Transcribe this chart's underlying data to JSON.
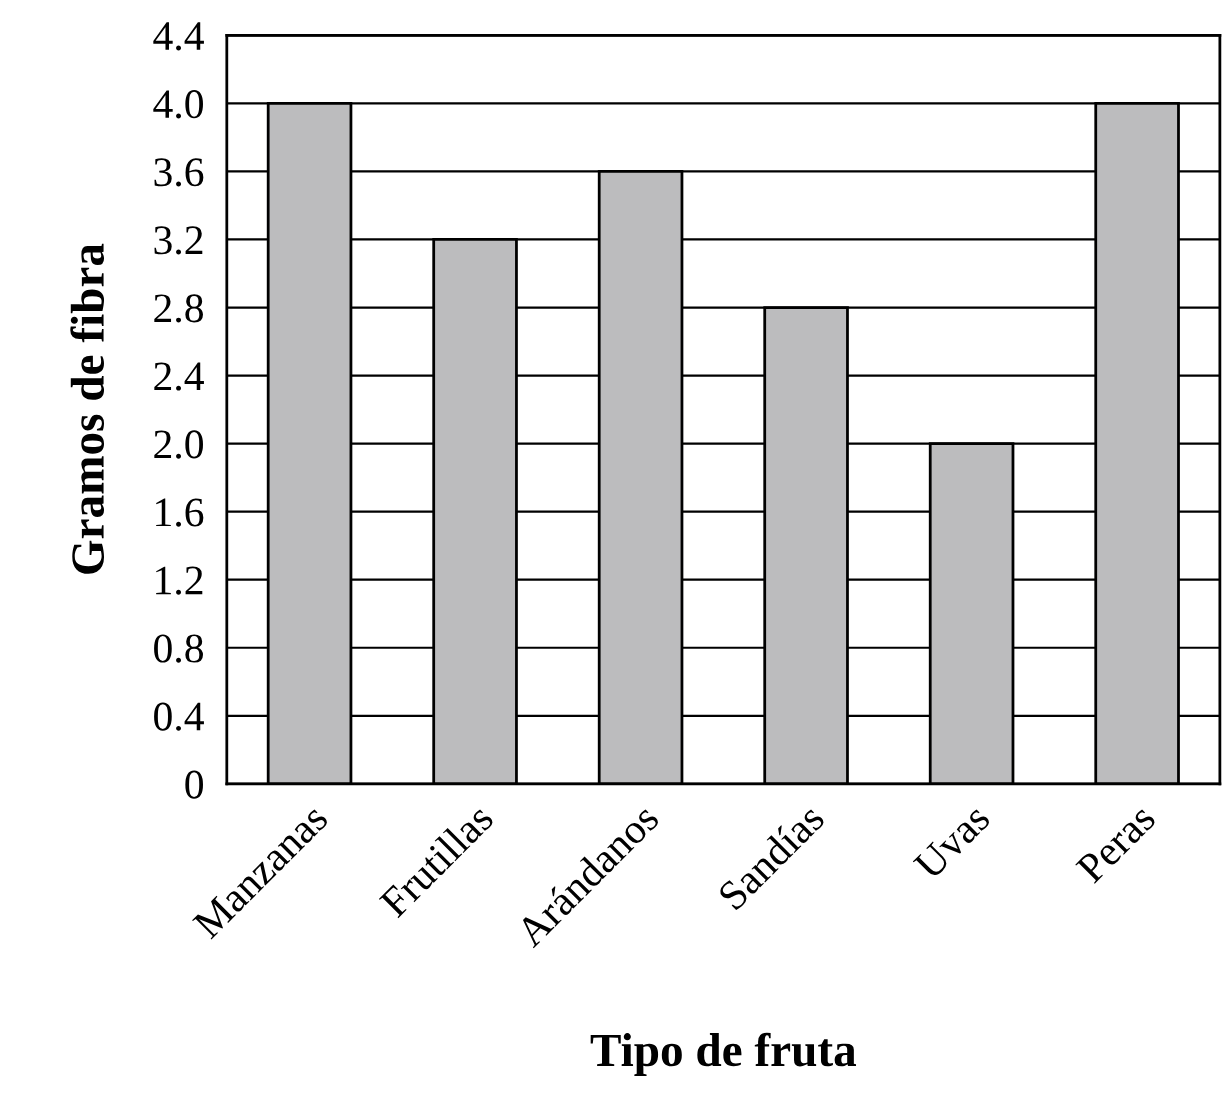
{
  "chart_data": {
    "type": "bar",
    "xlabel": "Tipo de fruta",
    "ylabel": "Gramos de fibra",
    "categories": [
      "Manzanas",
      "Frutillas",
      "Arándanos",
      "Sandías",
      "Uvas",
      "Peras"
    ],
    "values": [
      4.0,
      3.2,
      3.6,
      2.8,
      2.0,
      4.0
    ],
    "color": "#bcbcbe",
    "ylim": [
      0,
      4.4
    ],
    "yticks": [
      {
        "value": 0,
        "label": "0"
      },
      {
        "value": 0.4,
        "label": "0.4"
      },
      {
        "value": 0.8,
        "label": "0.8"
      },
      {
        "value": 1.2,
        "label": "1.2"
      },
      {
        "value": 1.6,
        "label": "1.6"
      },
      {
        "value": 2.0,
        "label": "2.0"
      },
      {
        "value": 2.4,
        "label": "2.4"
      },
      {
        "value": 2.8,
        "label": "2.8"
      },
      {
        "value": 3.2,
        "label": "3.2"
      },
      {
        "value": 3.6,
        "label": "3.6"
      },
      {
        "value": 4.0,
        "label": "4.0"
      },
      {
        "value": 4.4,
        "label": "4.4"
      }
    ],
    "grid": "y"
  }
}
